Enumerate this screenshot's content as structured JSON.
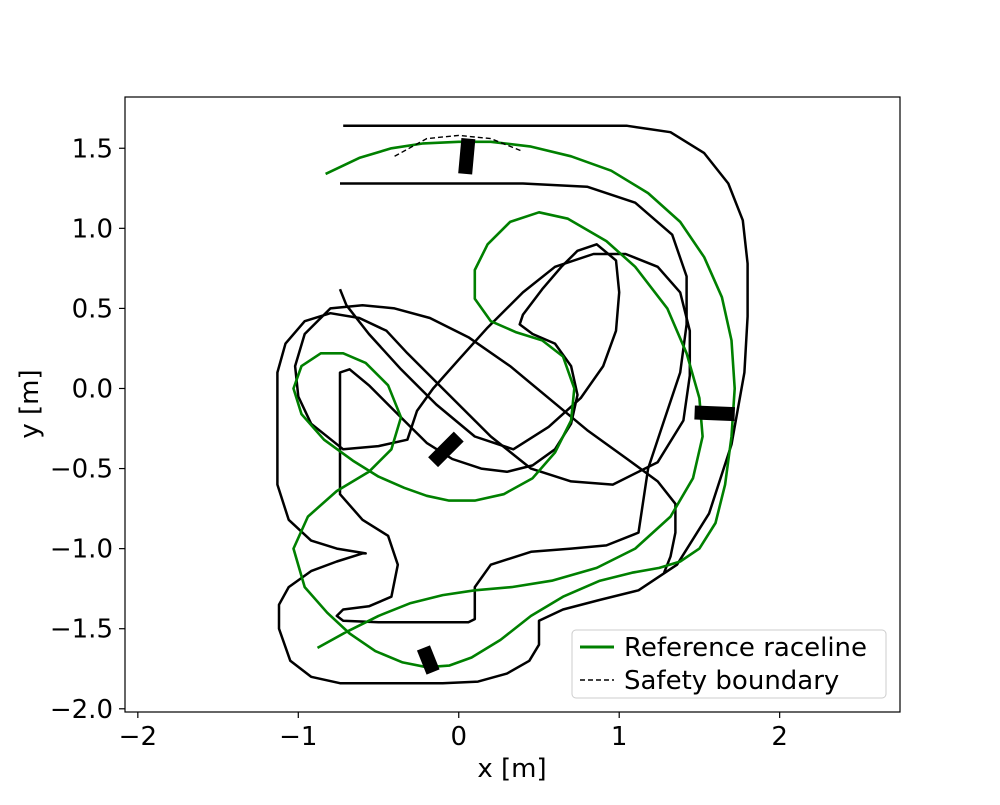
{
  "chart_data": {
    "type": "line",
    "title": "",
    "xlabel": "x [m]",
    "ylabel": "y [m]",
    "xlim": [
      -2.08,
      2.75
    ],
    "ylim": [
      -2.02,
      1.82
    ],
    "grid": false,
    "legend_position": "bottom-right",
    "x_ticks": [
      {
        "value": -2,
        "label": "−2"
      },
      {
        "value": -1,
        "label": "−1"
      },
      {
        "value": 0,
        "label": "0"
      },
      {
        "value": 1,
        "label": "1"
      },
      {
        "value": 2,
        "label": "2"
      }
    ],
    "y_ticks": [
      {
        "value": 1.5,
        "label": "1.5"
      },
      {
        "value": 1.0,
        "label": "1.0"
      },
      {
        "value": 0.5,
        "label": "0.5"
      },
      {
        "value": 0.0,
        "label": "0.0"
      },
      {
        "value": -0.5,
        "label": "−0.5"
      },
      {
        "value": -1.0,
        "label": "−1.0"
      },
      {
        "value": -1.5,
        "label": "−1.5"
      },
      {
        "value": -2.0,
        "label": "−2.0"
      }
    ],
    "series": [
      {
        "name": "Reference raceline",
        "color": "#008000",
        "style": "solid",
        "x": [
          -0.83,
          -0.62,
          -0.42,
          -0.22,
          0.0,
          0.2,
          0.45,
          0.7,
          0.95,
          1.18,
          1.38,
          1.53,
          1.64,
          1.7,
          1.72,
          1.7,
          1.66,
          1.6,
          1.5,
          1.38,
          1.25,
          1.08,
          0.88,
          0.65,
          0.45,
          0.26,
          0.08,
          -0.06,
          -0.2,
          -0.35,
          -0.52,
          -0.68,
          -0.82,
          -0.96,
          -1.03,
          -0.94,
          -0.76,
          -0.56,
          -0.42,
          -0.36,
          -0.44,
          -0.58,
          -0.72,
          -0.86,
          -0.98,
          -1.03,
          -0.98,
          -0.84,
          -0.66,
          -0.5,
          -0.34,
          -0.2,
          -0.06,
          0.1,
          0.28,
          0.46,
          0.6,
          0.7,
          0.72,
          0.65,
          0.52,
          0.36,
          0.2,
          0.1,
          0.1,
          0.18,
          0.32,
          0.5,
          0.68,
          0.92,
          1.1,
          1.3,
          1.42,
          1.5,
          1.52,
          1.46,
          1.32,
          1.1,
          0.86,
          0.58,
          0.33,
          0.1,
          -0.1,
          -0.3,
          -0.5,
          -0.7,
          -0.88
        ],
        "y": [
          1.34,
          1.44,
          1.5,
          1.53,
          1.54,
          1.54,
          1.51,
          1.45,
          1.36,
          1.22,
          1.04,
          0.82,
          0.57,
          0.3,
          0.0,
          -0.3,
          -0.6,
          -0.84,
          -1.0,
          -1.08,
          -1.12,
          -1.15,
          -1.2,
          -1.3,
          -1.42,
          -1.57,
          -1.68,
          -1.73,
          -1.74,
          -1.71,
          -1.64,
          -1.53,
          -1.4,
          -1.24,
          -1.0,
          -0.8,
          -0.64,
          -0.52,
          -0.38,
          -0.18,
          0.02,
          0.16,
          0.22,
          0.22,
          0.14,
          0.0,
          -0.16,
          -0.32,
          -0.45,
          -0.55,
          -0.62,
          -0.67,
          -0.7,
          -0.7,
          -0.66,
          -0.56,
          -0.4,
          -0.2,
          0.0,
          0.2,
          0.3,
          0.35,
          0.42,
          0.56,
          0.74,
          0.9,
          1.04,
          1.1,
          1.06,
          0.92,
          0.76,
          0.5,
          0.22,
          -0.06,
          -0.3,
          -0.56,
          -0.8,
          -1.0,
          -1.12,
          -1.2,
          -1.24,
          -1.26,
          -1.29,
          -1.34,
          -1.42,
          -1.52,
          -1.62
        ]
      },
      {
        "name": "Safety boundary",
        "color": "#000000",
        "style": "dashed",
        "x": [
          -0.4,
          -0.2,
          0.0,
          0.2,
          0.4
        ],
        "y": [
          1.45,
          1.56,
          1.58,
          1.56,
          1.48
        ]
      }
    ],
    "legend": [
      {
        "label": "Reference raceline",
        "color": "#008000",
        "style": "solid"
      },
      {
        "label": "Safety boundary",
        "color": "#000000",
        "style": "dashed"
      }
    ],
    "track": {
      "outer_boundary": {
        "x": [
          -0.72,
          -0.38,
          0.0,
          0.38,
          0.72,
          1.05,
          1.32,
          1.53,
          1.68,
          1.77,
          1.8,
          1.8,
          1.78,
          1.7,
          1.56,
          1.36,
          1.12,
          0.88,
          0.65,
          0.5,
          0.5,
          0.44,
          0.3,
          0.12,
          -0.1,
          -0.3,
          -0.52,
          -0.74,
          -0.92,
          -1.05,
          -1.12,
          -1.12,
          -1.06,
          -0.92,
          -0.76,
          -0.6,
          -0.58,
          -0.76,
          -0.92,
          -1.06,
          -1.13,
          -1.13,
          -1.13,
          -1.13,
          -1.08,
          -0.96,
          -0.8,
          -0.62,
          -0.45,
          -0.32,
          -0.05,
          0.2,
          0.45,
          0.7,
          0.96,
          1.24,
          1.4,
          1.44,
          1.44,
          1.38,
          1.24,
          1.04,
          0.84,
          0.6,
          0.4,
          0.18,
          0.0,
          -0.16,
          -0.26,
          -0.32,
          -0.5,
          -0.72,
          -0.92,
          -1.0,
          -1.02,
          -0.96,
          -0.8,
          -0.6,
          -0.4,
          -0.18,
          0.06,
          0.32,
          0.56,
          0.8,
          1.05,
          1.24,
          1.35,
          1.35,
          1.32,
          1.28
        ],
        "y": [
          1.64,
          1.64,
          1.64,
          1.64,
          1.64,
          1.64,
          1.6,
          1.47,
          1.28,
          1.05,
          0.78,
          0.45,
          0.1,
          -0.35,
          -0.78,
          -1.1,
          -1.26,
          -1.32,
          -1.38,
          -1.45,
          -1.6,
          -1.7,
          -1.78,
          -1.83,
          -1.84,
          -1.84,
          -1.84,
          -1.84,
          -1.8,
          -1.7,
          -1.5,
          -1.35,
          -1.24,
          -1.14,
          -1.08,
          -1.03,
          -1.03,
          -1.0,
          -0.95,
          -0.82,
          -0.6,
          -0.3,
          0.0,
          0.1,
          0.28,
          0.42,
          0.47,
          0.44,
          0.36,
          0.22,
          -0.05,
          -0.3,
          -0.5,
          -0.58,
          -0.6,
          -0.46,
          -0.2,
          0.08,
          0.36,
          0.6,
          0.76,
          0.84,
          0.84,
          0.76,
          0.6,
          0.38,
          0.18,
          0.0,
          -0.14,
          -0.32,
          -0.36,
          -0.38,
          -0.22,
          -0.05,
          0.14,
          0.34,
          0.5,
          0.52,
          0.5,
          0.44,
          0.32,
          0.14,
          -0.06,
          -0.26,
          -0.44,
          -0.58,
          -0.72,
          -0.9,
          -1.05,
          -1.15
        ]
      },
      "inner_boundary": {
        "x": [
          -0.74,
          -0.4,
          0.0,
          0.4,
          0.8,
          1.1,
          1.33,
          1.42,
          1.42,
          1.38,
          1.28,
          1.18,
          1.12,
          0.92,
          0.7,
          0.45,
          0.2,
          0.1,
          0.1,
          0.06,
          -0.06,
          -0.26,
          -0.5,
          -0.72,
          -0.76,
          -0.72,
          -0.56,
          -0.42,
          -0.38,
          -0.44,
          -0.6,
          -0.74,
          -0.74,
          -0.74,
          -0.74,
          -0.68,
          -0.56,
          -0.44,
          -0.32,
          -0.2,
          -0.04,
          0.14,
          0.3,
          0.46,
          0.6,
          0.7,
          0.74,
          0.7,
          0.6,
          0.46,
          0.38,
          0.4,
          0.52,
          0.64,
          0.74,
          0.86,
          0.98,
          1.0,
          0.98,
          0.9,
          0.76,
          0.56,
          0.34,
          0.1,
          -0.14,
          -0.36,
          -0.56,
          -0.7,
          -0.74
        ],
        "y": [
          1.28,
          1.28,
          1.28,
          1.28,
          1.26,
          1.16,
          0.96,
          0.7,
          0.4,
          0.1,
          -0.2,
          -0.5,
          -0.9,
          -0.98,
          -1.0,
          -1.02,
          -1.1,
          -1.24,
          -1.44,
          -1.46,
          -1.46,
          -1.46,
          -1.46,
          -1.45,
          -1.42,
          -1.38,
          -1.36,
          -1.3,
          -1.1,
          -0.92,
          -0.82,
          -0.66,
          -0.5,
          -0.2,
          0.1,
          0.12,
          0.02,
          -0.1,
          -0.22,
          -0.34,
          -0.44,
          -0.5,
          -0.52,
          -0.48,
          -0.38,
          -0.22,
          -0.04,
          0.14,
          0.28,
          0.34,
          0.4,
          0.46,
          0.62,
          0.76,
          0.86,
          0.9,
          0.8,
          0.6,
          0.36,
          0.14,
          -0.06,
          -0.24,
          -0.38,
          -0.3,
          -0.1,
          0.12,
          0.34,
          0.52,
          0.62
        ]
      }
    },
    "gates": [
      {
        "x": [
          0.04,
          0.06
        ],
        "y": [
          1.34,
          1.56
        ]
      },
      {
        "x": [
          1.47,
          1.72
        ],
        "y": [
          -0.15,
          -0.16
        ]
      },
      {
        "x": [
          -0.16,
          0.0
        ],
        "y": [
          -0.46,
          -0.3
        ]
      },
      {
        "x": [
          -0.22,
          -0.16
        ],
        "y": [
          -1.62,
          -1.77
        ]
      }
    ]
  }
}
